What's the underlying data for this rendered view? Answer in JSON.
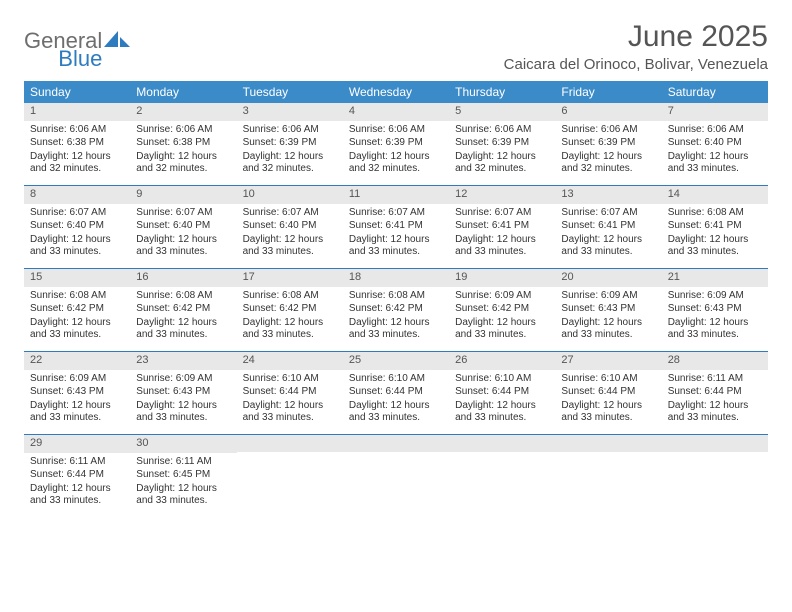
{
  "logo": {
    "word1": "General",
    "word2": "Blue"
  },
  "title": "June 2025",
  "location": "Caicara del Orinoco, Bolivar, Venezuela",
  "colors": {
    "header_bg": "#3b8bc9",
    "accent": "#2f7bbf",
    "text_muted": "#555555",
    "daynum_bg": "#e8e8e8"
  },
  "day_headers": [
    "Sunday",
    "Monday",
    "Tuesday",
    "Wednesday",
    "Thursday",
    "Friday",
    "Saturday"
  ],
  "labels": {
    "sunrise": "Sunrise:",
    "sunset": "Sunset:",
    "daylight": "Daylight:"
  },
  "weeks": [
    [
      {
        "n": "1",
        "sr": "6:06 AM",
        "ss": "6:38 PM",
        "dl": "12 hours and 32 minutes."
      },
      {
        "n": "2",
        "sr": "6:06 AM",
        "ss": "6:38 PM",
        "dl": "12 hours and 32 minutes."
      },
      {
        "n": "3",
        "sr": "6:06 AM",
        "ss": "6:39 PM",
        "dl": "12 hours and 32 minutes."
      },
      {
        "n": "4",
        "sr": "6:06 AM",
        "ss": "6:39 PM",
        "dl": "12 hours and 32 minutes."
      },
      {
        "n": "5",
        "sr": "6:06 AM",
        "ss": "6:39 PM",
        "dl": "12 hours and 32 minutes."
      },
      {
        "n": "6",
        "sr": "6:06 AM",
        "ss": "6:39 PM",
        "dl": "12 hours and 32 minutes."
      },
      {
        "n": "7",
        "sr": "6:06 AM",
        "ss": "6:40 PM",
        "dl": "12 hours and 33 minutes."
      }
    ],
    [
      {
        "n": "8",
        "sr": "6:07 AM",
        "ss": "6:40 PM",
        "dl": "12 hours and 33 minutes."
      },
      {
        "n": "9",
        "sr": "6:07 AM",
        "ss": "6:40 PM",
        "dl": "12 hours and 33 minutes."
      },
      {
        "n": "10",
        "sr": "6:07 AM",
        "ss": "6:40 PM",
        "dl": "12 hours and 33 minutes."
      },
      {
        "n": "11",
        "sr": "6:07 AM",
        "ss": "6:41 PM",
        "dl": "12 hours and 33 minutes."
      },
      {
        "n": "12",
        "sr": "6:07 AM",
        "ss": "6:41 PM",
        "dl": "12 hours and 33 minutes."
      },
      {
        "n": "13",
        "sr": "6:07 AM",
        "ss": "6:41 PM",
        "dl": "12 hours and 33 minutes."
      },
      {
        "n": "14",
        "sr": "6:08 AM",
        "ss": "6:41 PM",
        "dl": "12 hours and 33 minutes."
      }
    ],
    [
      {
        "n": "15",
        "sr": "6:08 AM",
        "ss": "6:42 PM",
        "dl": "12 hours and 33 minutes."
      },
      {
        "n": "16",
        "sr": "6:08 AM",
        "ss": "6:42 PM",
        "dl": "12 hours and 33 minutes."
      },
      {
        "n": "17",
        "sr": "6:08 AM",
        "ss": "6:42 PM",
        "dl": "12 hours and 33 minutes."
      },
      {
        "n": "18",
        "sr": "6:08 AM",
        "ss": "6:42 PM",
        "dl": "12 hours and 33 minutes."
      },
      {
        "n": "19",
        "sr": "6:09 AM",
        "ss": "6:42 PM",
        "dl": "12 hours and 33 minutes."
      },
      {
        "n": "20",
        "sr": "6:09 AM",
        "ss": "6:43 PM",
        "dl": "12 hours and 33 minutes."
      },
      {
        "n": "21",
        "sr": "6:09 AM",
        "ss": "6:43 PM",
        "dl": "12 hours and 33 minutes."
      }
    ],
    [
      {
        "n": "22",
        "sr": "6:09 AM",
        "ss": "6:43 PM",
        "dl": "12 hours and 33 minutes."
      },
      {
        "n": "23",
        "sr": "6:09 AM",
        "ss": "6:43 PM",
        "dl": "12 hours and 33 minutes."
      },
      {
        "n": "24",
        "sr": "6:10 AM",
        "ss": "6:44 PM",
        "dl": "12 hours and 33 minutes."
      },
      {
        "n": "25",
        "sr": "6:10 AM",
        "ss": "6:44 PM",
        "dl": "12 hours and 33 minutes."
      },
      {
        "n": "26",
        "sr": "6:10 AM",
        "ss": "6:44 PM",
        "dl": "12 hours and 33 minutes."
      },
      {
        "n": "27",
        "sr": "6:10 AM",
        "ss": "6:44 PM",
        "dl": "12 hours and 33 minutes."
      },
      {
        "n": "28",
        "sr": "6:11 AM",
        "ss": "6:44 PM",
        "dl": "12 hours and 33 minutes."
      }
    ],
    [
      {
        "n": "29",
        "sr": "6:11 AM",
        "ss": "6:44 PM",
        "dl": "12 hours and 33 minutes."
      },
      {
        "n": "30",
        "sr": "6:11 AM",
        "ss": "6:45 PM",
        "dl": "12 hours and 33 minutes."
      },
      null,
      null,
      null,
      null,
      null
    ]
  ]
}
